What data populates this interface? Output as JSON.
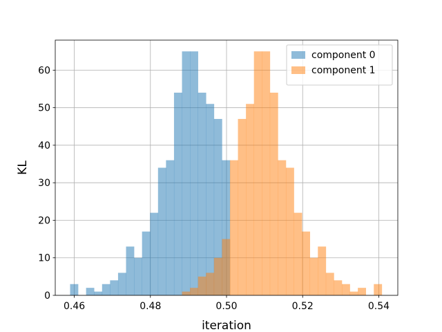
{
  "chart_data": {
    "type": "histogram",
    "title": "",
    "xlabel": "iteration",
    "ylabel": "KL",
    "xlim": [
      0.455,
      0.545
    ],
    "ylim": [
      0,
      68
    ],
    "xticks": [
      0.46,
      0.48,
      0.5,
      0.52,
      0.54
    ],
    "xtick_labels": [
      "0.46",
      "0.48",
      "0.50",
      "0.52",
      "0.54"
    ],
    "yticks": [
      0,
      10,
      20,
      30,
      40,
      50,
      60
    ],
    "ytick_labels": [
      "0",
      "10",
      "20",
      "30",
      "40",
      "50",
      "60"
    ],
    "grid": true,
    "legend_position": "top-right",
    "series": [
      {
        "name": "component 0",
        "color": "#1f77b4",
        "alpha": 0.5,
        "bins": [
          [
            0.4589,
            0.461,
            3
          ],
          [
            0.461,
            0.4631,
            0
          ],
          [
            0.4631,
            0.4652,
            2
          ],
          [
            0.4652,
            0.4673,
            1
          ],
          [
            0.4673,
            0.4694,
            3
          ],
          [
            0.4694,
            0.4715,
            4
          ],
          [
            0.4715,
            0.4736,
            6
          ],
          [
            0.4736,
            0.4757,
            13
          ],
          [
            0.4757,
            0.4778,
            10
          ],
          [
            0.4778,
            0.4799,
            17
          ],
          [
            0.4799,
            0.482,
            22
          ],
          [
            0.482,
            0.4841,
            34
          ],
          [
            0.4841,
            0.4862,
            36
          ],
          [
            0.4862,
            0.4883,
            54
          ],
          [
            0.4883,
            0.4904,
            65
          ],
          [
            0.4904,
            0.4925,
            65
          ],
          [
            0.4925,
            0.4946,
            54
          ],
          [
            0.4946,
            0.4967,
            51
          ],
          [
            0.4967,
            0.4988,
            47
          ],
          [
            0.4988,
            0.5009,
            36
          ]
        ]
      },
      {
        "name": "component 1",
        "color": "#ff7f0e",
        "alpha": 0.5,
        "bins": [
          [
            0.4883,
            0.4904,
            1
          ],
          [
            0.4904,
            0.4925,
            2
          ],
          [
            0.4925,
            0.4946,
            5
          ],
          [
            0.4946,
            0.4967,
            6
          ],
          [
            0.4967,
            0.4988,
            10
          ],
          [
            0.4988,
            0.5009,
            15
          ],
          [
            0.5009,
            0.503,
            36
          ],
          [
            0.503,
            0.5051,
            47
          ],
          [
            0.5051,
            0.5072,
            51
          ],
          [
            0.5072,
            0.5093,
            65
          ],
          [
            0.5093,
            0.5114,
            65
          ],
          [
            0.5114,
            0.5135,
            54
          ],
          [
            0.5135,
            0.5156,
            36
          ],
          [
            0.5156,
            0.5177,
            34
          ],
          [
            0.5177,
            0.5198,
            22
          ],
          [
            0.5198,
            0.5219,
            17
          ],
          [
            0.5219,
            0.524,
            10
          ],
          [
            0.524,
            0.5261,
            13
          ],
          [
            0.5261,
            0.5282,
            6
          ],
          [
            0.5282,
            0.5303,
            4
          ],
          [
            0.5303,
            0.5324,
            3
          ],
          [
            0.5324,
            0.5345,
            1
          ],
          [
            0.5345,
            0.5366,
            2
          ],
          [
            0.5366,
            0.5387,
            0
          ],
          [
            0.5387,
            0.5408,
            3
          ]
        ]
      }
    ]
  }
}
